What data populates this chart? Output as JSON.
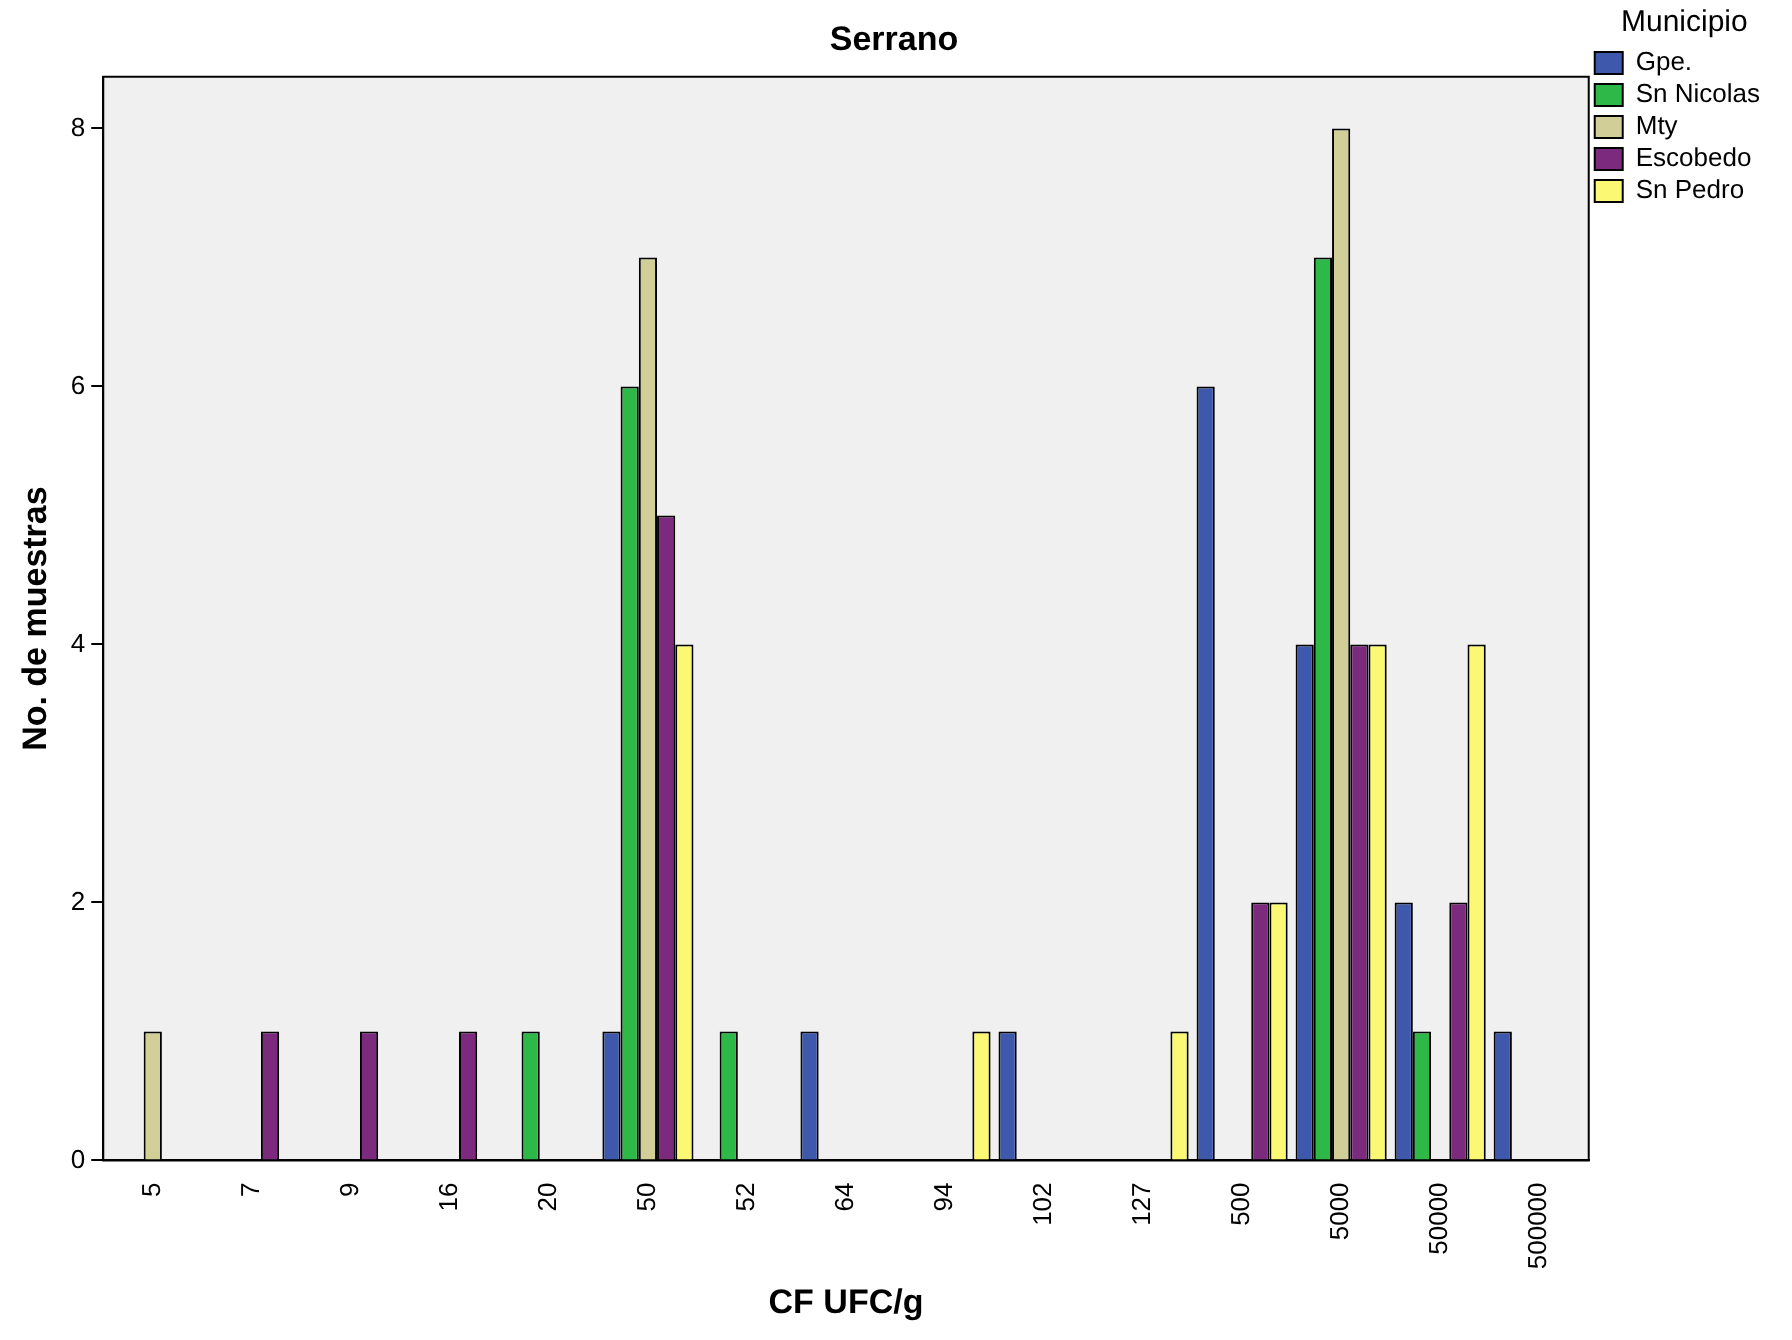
{
  "chart_data": {
    "type": "bar",
    "title": "Serrano",
    "xlabel": "CF UFC/g",
    "ylabel": "No. de muestras",
    "legend_title": "Municipio",
    "legend": "top right",
    "grid": false,
    "categories": [
      "5",
      "7",
      "9",
      "16",
      "20",
      "50",
      "52",
      "64",
      "94",
      "102",
      "127",
      "500",
      "5000",
      "50000",
      "500000"
    ],
    "ylim": [
      0,
      8.4
    ],
    "yticks": [
      0,
      2,
      4,
      6,
      8
    ],
    "series": [
      {
        "name": "Gpe.",
        "color": "#3e58ac",
        "values": [
          null,
          null,
          null,
          null,
          null,
          1,
          null,
          1,
          null,
          1,
          null,
          6,
          4,
          2,
          1
        ]
      },
      {
        "name": "Sn Nicolas",
        "color": "#2eb848",
        "values": [
          null,
          null,
          null,
          null,
          1,
          6,
          1,
          null,
          null,
          null,
          null,
          null,
          7,
          1,
          null
        ]
      },
      {
        "name": "Mty",
        "color": "#d2ce97",
        "values": [
          1,
          null,
          null,
          null,
          null,
          7,
          null,
          null,
          null,
          null,
          null,
          null,
          8,
          null,
          null
        ]
      },
      {
        "name": "Escobedo",
        "color": "#7b2a7e",
        "values": [
          null,
          1,
          1,
          1,
          null,
          5,
          null,
          null,
          null,
          null,
          null,
          2,
          4,
          2,
          null
        ]
      },
      {
        "name": "Sn Pedro",
        "color": "#fbf873",
        "values": [
          null,
          null,
          null,
          null,
          null,
          4,
          null,
          null,
          1,
          null,
          1,
          2,
          4,
          4,
          null
        ]
      }
    ]
  }
}
